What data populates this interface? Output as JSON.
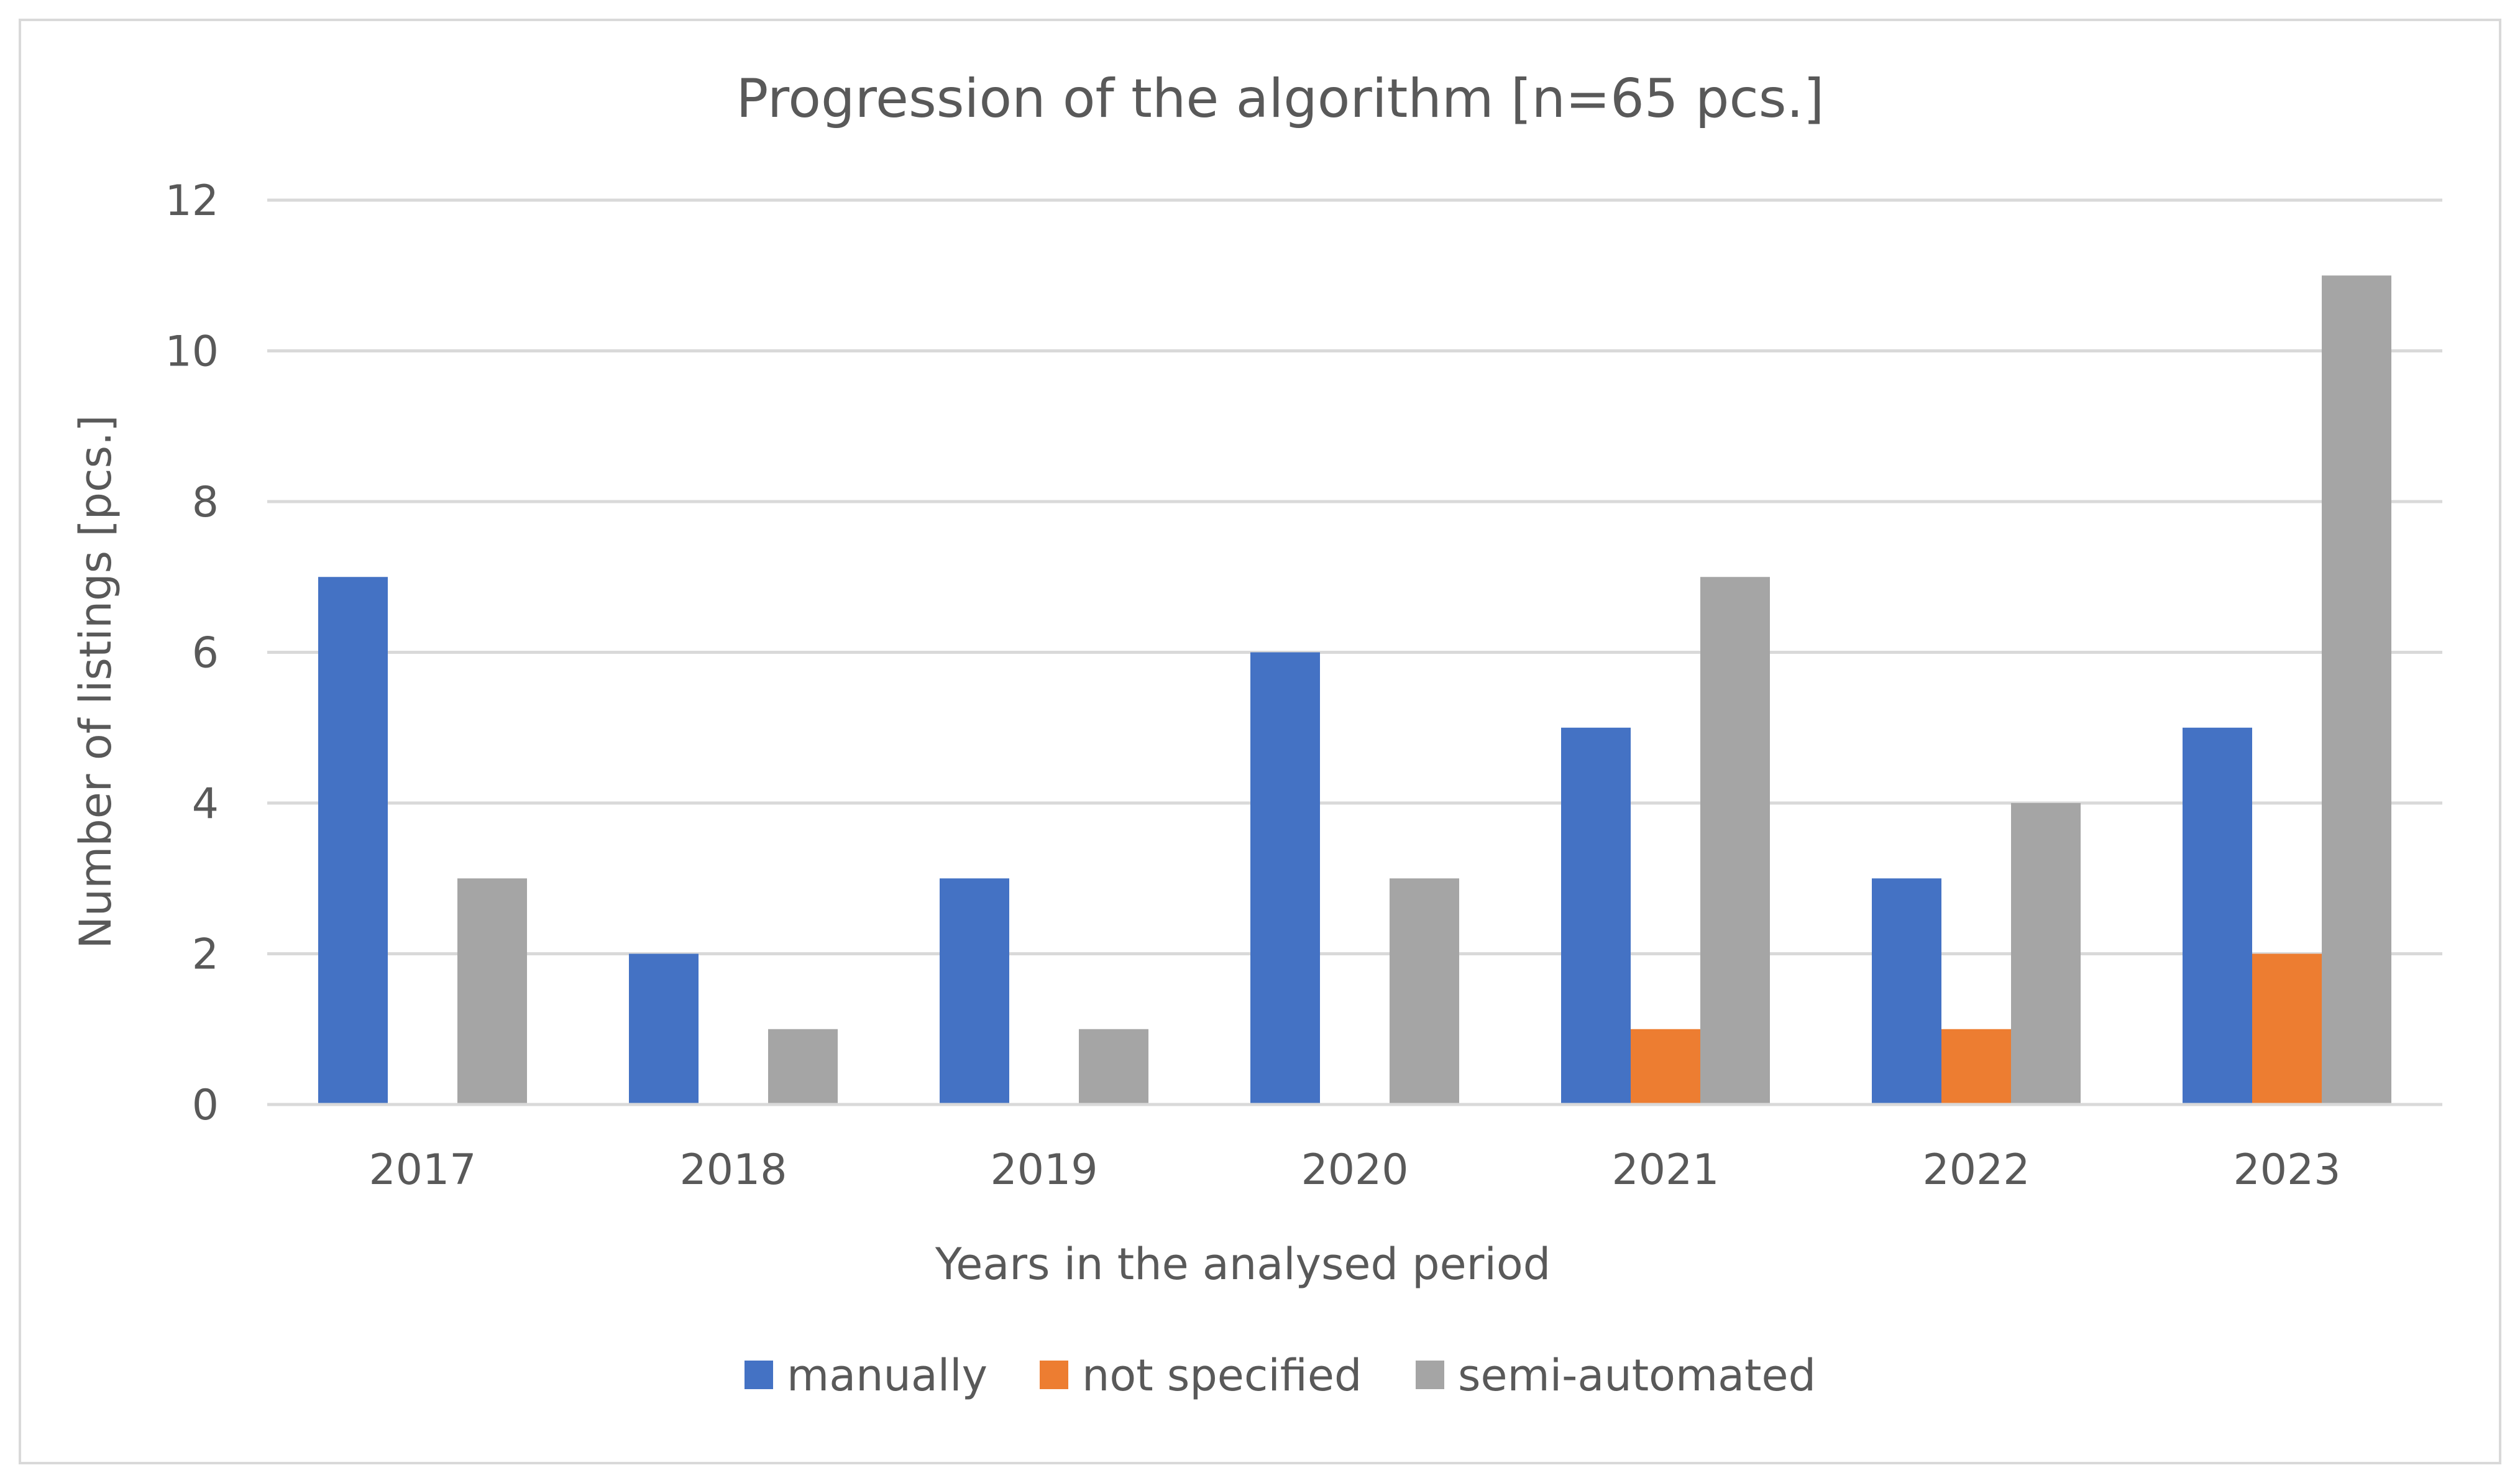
{
  "chart_data": {
    "type": "bar",
    "title": "Progression of the algorithm [n=65 pcs.]",
    "xlabel": "Years in the analysed period",
    "ylabel": "Number of listings [pcs.]",
    "categories": [
      "2017",
      "2018",
      "2019",
      "2020",
      "2021",
      "2022",
      "2023"
    ],
    "series": [
      {
        "name": "manually",
        "color": "#4472C4",
        "values": [
          7,
          2,
          3,
          6,
          5,
          3,
          5
        ]
      },
      {
        "name": "not specified",
        "color": "#ED7D31",
        "values": [
          0,
          0,
          0,
          0,
          1,
          1,
          2
        ]
      },
      {
        "name": "semi-automated",
        "color": "#A5A5A5",
        "values": [
          3,
          1,
          1,
          3,
          7,
          4,
          11
        ]
      }
    ],
    "ylim": [
      0,
      12
    ],
    "yticks": [
      0,
      2,
      4,
      6,
      8,
      10,
      12
    ],
    "grid": true,
    "legend_position": "bottom"
  }
}
